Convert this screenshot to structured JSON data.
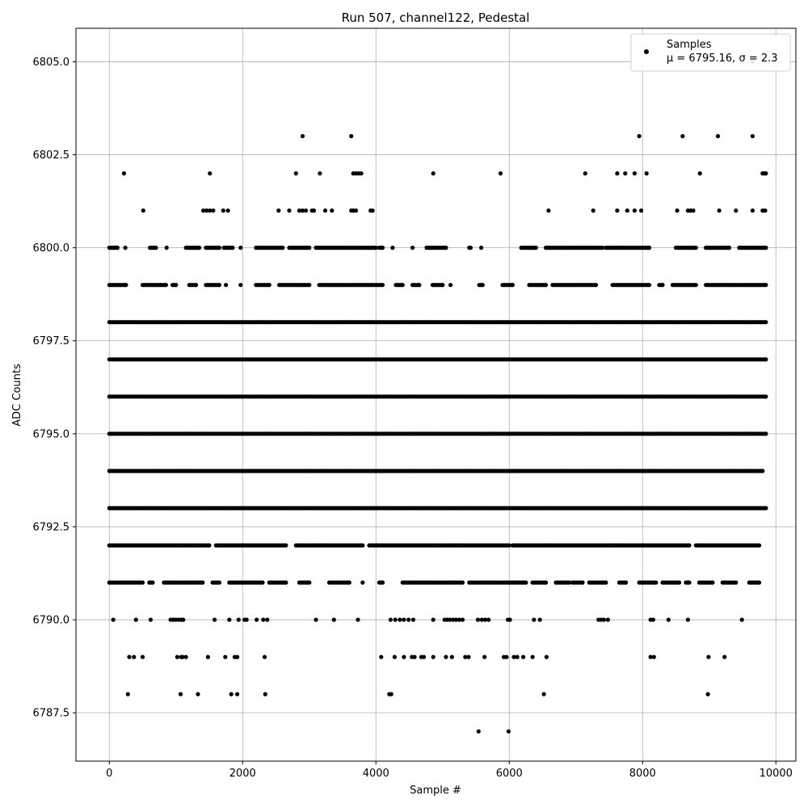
{
  "chart_data": {
    "type": "scatter",
    "title": "Run 507, channel122, Pedestal",
    "xlabel": "Sample #",
    "ylabel": "ADC Counts",
    "xlim": [
      -500,
      10300
    ],
    "ylim": [
      6786.2,
      6805.9
    ],
    "x_ticks": [
      0,
      2000,
      4000,
      6000,
      8000,
      10000
    ],
    "x_tick_labels": [
      "0",
      "2000",
      "4000",
      "6000",
      "8000",
      "10000"
    ],
    "y_ticks": [
      6787.5,
      6790.0,
      6792.5,
      6795.0,
      6797.5,
      6800.0,
      6802.5,
      6805.0
    ],
    "y_tick_labels": [
      "6787.5",
      "6790.0",
      "6792.5",
      "6795.0",
      "6797.5",
      "6800.0",
      "6802.5",
      "6805.0"
    ],
    "grid": true,
    "legend_position": "top-right",
    "marker_color": "#000000",
    "series": [
      {
        "name": "Samples",
        "stats": "μ = 6795.16, σ = 2.3",
        "x_range": [
          0,
          9850
        ],
        "rows": [
          {
            "y": 6805,
            "x": [
              9650
            ]
          },
          {
            "y": 6803,
            "x": [
              2900,
              3630,
              7950,
              8600,
              9130,
              9650
            ]
          },
          {
            "y": 6802,
            "x": [
              220,
              1510,
              2800,
              3160,
              3660,
              3700,
              3740,
              3780,
              4860,
              5870,
              7140,
              7620,
              7740,
              7880,
              8060,
              8860,
              9800,
              9830,
              9850
            ]
          },
          {
            "y": 6801,
            "x": [
              510,
              1410,
              1460,
              1510,
              1560,
              1710,
              1780,
              2540,
              2700,
              2850,
              2900,
              2950,
              3040,
              3070,
              3240,
              3340,
              3630,
              3660,
              3700,
              3920,
              3950,
              6590,
              7260,
              7620,
              7770,
              7880,
              7980,
              8520,
              8680,
              8720,
              8760,
              9150,
              9400,
              9650,
              9800,
              9840
            ]
          },
          {
            "y": 6800,
            "x_bands": [
              [
                0,
                120
              ],
              [
                240,
                240
              ],
              [
                610,
                700
              ],
              [
                860,
                860
              ],
              [
                1150,
                1350
              ],
              [
                1450,
                1650
              ],
              [
                1720,
                1850
              ],
              [
                1970,
                1970
              ],
              [
                2200,
                2600
              ],
              [
                2700,
                3000
              ],
              [
                3100,
                4000
              ],
              [
                4050,
                4100
              ],
              [
                4250,
                4250
              ],
              [
                4550,
                4550
              ],
              [
                4760,
                5050
              ],
              [
                5400,
                5420
              ],
              [
                5580,
                5580
              ],
              [
                6180,
                6400
              ],
              [
                6550,
                7400
              ],
              [
                7450,
                8100
              ],
              [
                8500,
                8800
              ],
              [
                8950,
                9300
              ],
              [
                9450,
                9850
              ]
            ]
          },
          {
            "y": 6799,
            "x_bands": [
              [
                0,
                250
              ],
              [
                500,
                850
              ],
              [
                950,
                1000
              ],
              [
                1200,
                1300
              ],
              [
                1450,
                1650
              ],
              [
                1750,
                1750
              ],
              [
                1970,
                1970
              ],
              [
                2200,
                2400
              ],
              [
                2550,
                3000
              ],
              [
                3150,
                4100
              ],
              [
                4300,
                4400
              ],
              [
                4550,
                4650
              ],
              [
                4850,
                5000
              ],
              [
                5120,
                5120
              ],
              [
                5550,
                5600
              ],
              [
                5900,
                6050
              ],
              [
                6300,
                6550
              ],
              [
                6650,
                7300
              ],
              [
                7550,
                8100
              ],
              [
                8250,
                8300
              ],
              [
                8450,
                8800
              ],
              [
                8950,
                9850
              ]
            ]
          },
          {
            "y": 6798,
            "x_bands": [
              [
                0,
                9850
              ]
            ]
          },
          {
            "y": 6797,
            "x_bands": [
              [
                0,
                9850
              ]
            ]
          },
          {
            "y": 6796,
            "x_bands": [
              [
                0,
                9850
              ]
            ]
          },
          {
            "y": 6795,
            "x_bands": [
              [
                0,
                9850
              ]
            ]
          },
          {
            "y": 6794,
            "x_bands": [
              [
                0,
                9800
              ]
            ]
          },
          {
            "y": 6793,
            "x_bands": [
              [
                0,
                9850
              ]
            ]
          },
          {
            "y": 6792,
            "x_bands": [
              [
                0,
                1500
              ],
              [
                1600,
                2650
              ],
              [
                2800,
                3800
              ],
              [
                3900,
                6000
              ],
              [
                6050,
                8700
              ],
              [
                8800,
                9750
              ]
            ]
          },
          {
            "y": 6791,
            "x_bands": [
              [
                0,
                500
              ],
              [
                600,
                650
              ],
              [
                820,
                1400
              ],
              [
                1550,
                1650
              ],
              [
                1800,
                2300
              ],
              [
                2400,
                2650
              ],
              [
                2850,
                3000
              ],
              [
                3300,
                3600
              ],
              [
                3800,
                3800
              ],
              [
                4050,
                4100
              ],
              [
                4400,
                5300
              ],
              [
                5400,
                6250
              ],
              [
                6350,
                6550
              ],
              [
                6700,
                6900
              ],
              [
                6950,
                7100
              ],
              [
                7200,
                7450
              ],
              [
                7650,
                7750
              ],
              [
                7950,
                8200
              ],
              [
                8300,
                8550
              ],
              [
                8650,
                8700
              ],
              [
                8850,
                9050
              ],
              [
                9200,
                9400
              ],
              [
                9600,
                9750
              ]
            ]
          },
          {
            "y": 6790,
            "x": [
              60,
              400,
              620,
              920,
              960,
              1000,
              1040,
              1080,
              1110,
              1580,
              1800,
              1940,
              2030,
              2060,
              2210,
              2310,
              2370,
              3100,
              3370,
              3730,
              4220,
              4290,
              4360,
              4420,
              4490,
              4560,
              4860,
              5030,
              5070,
              5110,
              5160,
              5200,
              5250,
              5300,
              5530,
              5590,
              5640,
              5690,
              5980,
              6010,
              6370,
              6460,
              7340,
              7380,
              7420,
              7480,
              8120,
              8160,
              8390,
              8680,
              9490
            ]
          },
          {
            "y": 6789,
            "x": [
              300,
              370,
              500,
              1020,
              1080,
              1100,
              1150,
              1480,
              1740,
              1880,
              1920,
              2330,
              4080,
              4280,
              4420,
              4540,
              4580,
              4680,
              4720,
              4860,
              5050,
              5140,
              5340,
              5390,
              5630,
              5920,
              5960,
              6070,
              6120,
              6210,
              6350,
              6560,
              8120,
              8170,
              8990,
              9230
            ]
          },
          {
            "y": 6788,
            "x": [
              280,
              1070,
              1330,
              1830,
              1920,
              2340,
              4200,
              4230,
              6520,
              8980
            ]
          },
          {
            "y": 6787,
            "x": [
              5540,
              5990
            ]
          }
        ]
      }
    ]
  }
}
